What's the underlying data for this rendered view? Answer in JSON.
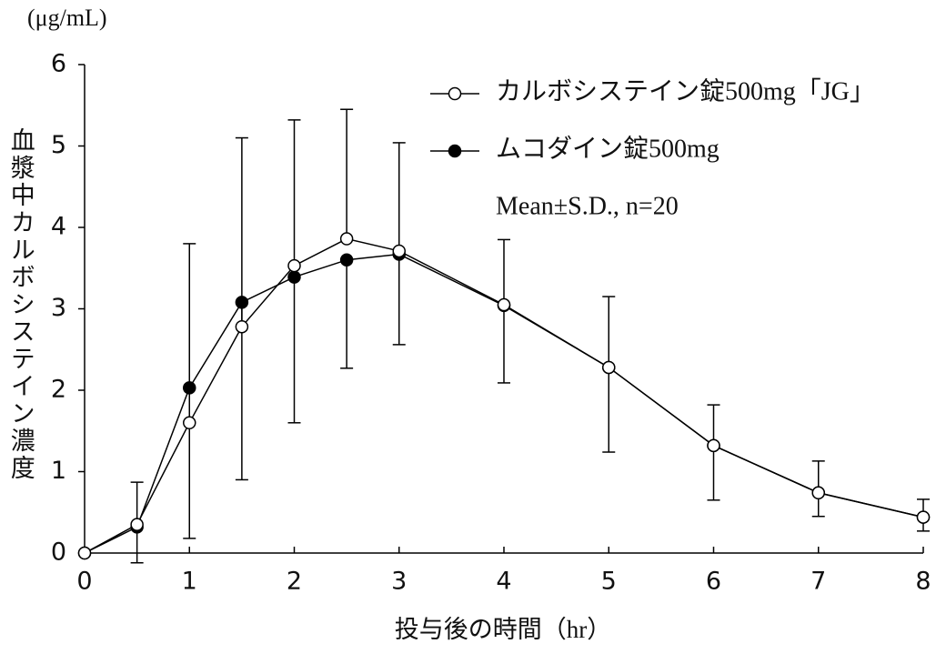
{
  "chart_data": {
    "type": "line",
    "unit_label": "(μg/mL)",
    "y_label": "血漿中カルボシステイン濃度",
    "x_label": "投与後の時間（hr）",
    "annotation": "Mean±S.D., n=20",
    "legend": "upper right",
    "x": [
      0,
      0.5,
      1,
      1.5,
      2,
      2.5,
      3,
      4,
      5,
      6,
      7,
      8
    ],
    "series": [
      {
        "name": "ムコダイン錠500mg",
        "color": "#000000",
        "marker_fill": "#000000",
        "error_direction": "down",
        "values": [
          0,
          0.32,
          2.03,
          3.08,
          3.39,
          3.6,
          3.67,
          3.04,
          2.28,
          1.32,
          0.74,
          0.44
        ],
        "errors": [
          null,
          0.44,
          1.85,
          2.18,
          1.79,
          1.33,
          1.11,
          0.95,
          1.04,
          0.67,
          0.29,
          0.17
        ]
      },
      {
        "name": "カルボシステイン錠500mg「JG」",
        "color": "#000000",
        "marker_fill": "#ffffff",
        "error_direction": "up",
        "values": [
          0,
          0.35,
          1.6,
          2.78,
          3.53,
          3.86,
          3.71,
          3.05,
          2.28,
          1.32,
          0.74,
          0.44
        ],
        "errors": [
          null,
          0.52,
          2.2,
          2.32,
          1.79,
          1.59,
          1.33,
          0.8,
          0.87,
          0.5,
          0.39,
          0.22
        ]
      }
    ],
    "xlim": [
      0,
      8
    ],
    "xticks": [
      0,
      1,
      2,
      3,
      4,
      5,
      6,
      7,
      8
    ],
    "ylim": [
      0,
      6
    ],
    "yticks": [
      0,
      1,
      2,
      3,
      4,
      5,
      6
    ],
    "grid": false
  }
}
